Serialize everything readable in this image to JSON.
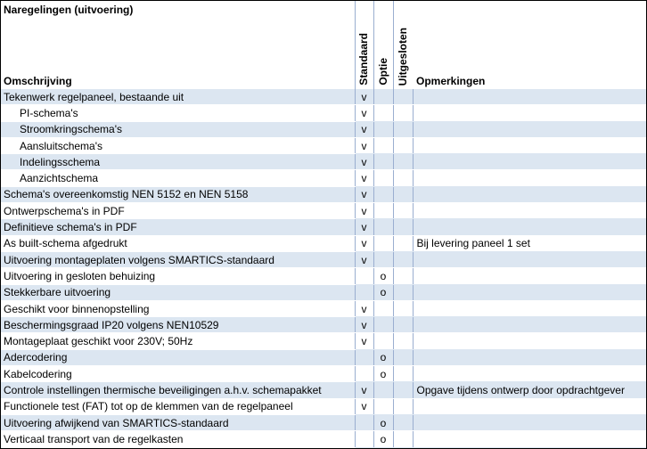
{
  "title": "Naregelingen (uitvoering)",
  "columns": {
    "description": "Omschrijving",
    "standard": "Standaard",
    "option": "Optie",
    "excluded": "Uitgesloten",
    "remarks": "Opmerkingen"
  },
  "rows": [
    {
      "desc": "Tekenwerk regelpaneel, bestaande uit",
      "std": "v",
      "opt": "",
      "exc": "",
      "rem": "",
      "sub": false
    },
    {
      "desc": "PI-schema's",
      "std": "v",
      "opt": "",
      "exc": "",
      "rem": "",
      "sub": true
    },
    {
      "desc": "Stroomkringschema's",
      "std": "v",
      "opt": "",
      "exc": "",
      "rem": "",
      "sub": true
    },
    {
      "desc": "Aansluitschema's",
      "std": "v",
      "opt": "",
      "exc": "",
      "rem": "",
      "sub": true
    },
    {
      "desc": "Indelingsschema",
      "std": "v",
      "opt": "",
      "exc": "",
      "rem": "",
      "sub": true
    },
    {
      "desc": "Aanzichtschema",
      "std": "v",
      "opt": "",
      "exc": "",
      "rem": "",
      "sub": true
    },
    {
      "desc": "Schema's overeenkomstig NEN 5152 en NEN 5158",
      "std": "v",
      "opt": "",
      "exc": "",
      "rem": "",
      "sub": false
    },
    {
      "desc": "Ontwerpschema's in PDF",
      "std": "v",
      "opt": "",
      "exc": "",
      "rem": "",
      "sub": false
    },
    {
      "desc": "Definitieve schema's in PDF",
      "std": "v",
      "opt": "",
      "exc": "",
      "rem": "",
      "sub": false
    },
    {
      "desc": "As built-schema afgedrukt",
      "std": "v",
      "opt": "",
      "exc": "",
      "rem": "Bij levering paneel 1 set",
      "sub": false
    },
    {
      "desc": "Uitvoering montageplaten volgens SMARTICS-standaard",
      "std": "v",
      "opt": "",
      "exc": "",
      "rem": "",
      "sub": false
    },
    {
      "desc": "Uitvoering in gesloten behuizing",
      "std": "",
      "opt": "o",
      "exc": "",
      "rem": "",
      "sub": false
    },
    {
      "desc": "Stekkerbare uitvoering",
      "std": "",
      "opt": "o",
      "exc": "",
      "rem": "",
      "sub": false
    },
    {
      "desc": "Geschikt voor binnenopstelling",
      "std": "v",
      "opt": "",
      "exc": "",
      "rem": "",
      "sub": false
    },
    {
      "desc": "Beschermingsgraad IP20 volgens NEN10529",
      "std": "v",
      "opt": "",
      "exc": "",
      "rem": "",
      "sub": false
    },
    {
      "desc": "Montageplaat geschikt voor 230V; 50Hz",
      "std": "v",
      "opt": "",
      "exc": "",
      "rem": "",
      "sub": false
    },
    {
      "desc": "Adercodering",
      "std": "",
      "opt": "o",
      "exc": "",
      "rem": "",
      "sub": false
    },
    {
      "desc": "Kabelcodering",
      "std": "",
      "opt": "o",
      "exc": "",
      "rem": "",
      "sub": false
    },
    {
      "desc": "Controle instellingen thermische beveiligingen a.h.v. schemapakket",
      "std": "v",
      "opt": "",
      "exc": "",
      "rem": "Opgave tijdens ontwerp door opdrachtgever",
      "sub": false
    },
    {
      "desc": "Functionele test (FAT) tot op de klemmen van de regelpaneel",
      "std": "v",
      "opt": "",
      "exc": "",
      "rem": "",
      "sub": false
    },
    {
      "desc": "Uitvoering afwijkend van SMARTICS-standaard",
      "std": "",
      "opt": "o",
      "exc": "",
      "rem": "",
      "sub": false
    },
    {
      "desc": "Verticaal transport van de regelkasten",
      "std": "",
      "opt": "o",
      "exc": "",
      "rem": "",
      "sub": false
    }
  ],
  "colors": {
    "row_shade": "#dce6f1",
    "divider": "#9aaed0"
  }
}
